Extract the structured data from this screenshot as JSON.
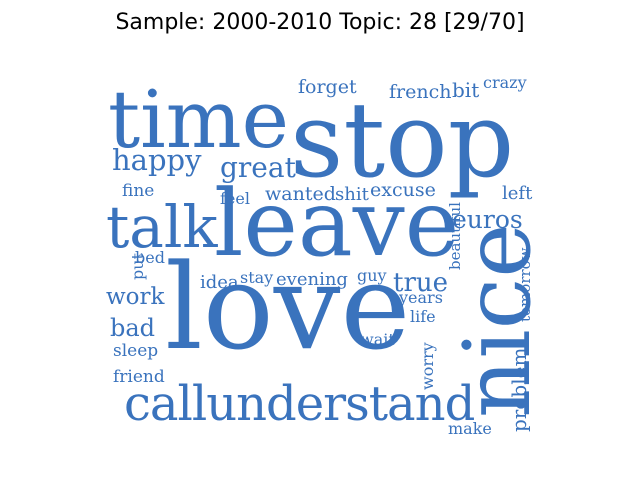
{
  "title": "Sample: 2000-2010 Topic: 28 [29/70]",
  "colors": {
    "word": "#3a73bd",
    "background": "#ffffff"
  },
  "words": [
    {
      "text": "time",
      "size": "xl"
    },
    {
      "text": "stop",
      "size": "xxl"
    },
    {
      "text": "love",
      "size": "xxl"
    },
    {
      "text": "leave",
      "size": "xl"
    },
    {
      "text": "nice",
      "size": "xl",
      "vertical": true
    },
    {
      "text": "callunderstand",
      "size": "l"
    },
    {
      "text": "talk",
      "size": "l"
    },
    {
      "text": "happy",
      "size": "m"
    },
    {
      "text": "great",
      "size": "m"
    },
    {
      "text": "euros",
      "size": "m"
    },
    {
      "text": "true",
      "size": "m"
    },
    {
      "text": "work",
      "size": "m"
    },
    {
      "text": "bad",
      "size": "m"
    },
    {
      "text": "forget",
      "size": "s"
    },
    {
      "text": "french",
      "size": "s"
    },
    {
      "text": "bit",
      "size": "s"
    },
    {
      "text": "crazy",
      "size": "s"
    },
    {
      "text": "wanted",
      "size": "s"
    },
    {
      "text": "shit",
      "size": "s"
    },
    {
      "text": "excuse",
      "size": "s"
    },
    {
      "text": "left",
      "size": "s"
    },
    {
      "text": "fine",
      "size": "s"
    },
    {
      "text": "feel",
      "size": "s"
    },
    {
      "text": "bed",
      "size": "s"
    },
    {
      "text": "put",
      "size": "s",
      "vertical": true
    },
    {
      "text": "idea",
      "size": "s"
    },
    {
      "text": "stay",
      "size": "s"
    },
    {
      "text": "evening",
      "size": "s"
    },
    {
      "text": "guy",
      "size": "s"
    },
    {
      "text": "years",
      "size": "s"
    },
    {
      "text": "life",
      "size": "s"
    },
    {
      "text": "beautiful",
      "size": "s",
      "vertical": true
    },
    {
      "text": "tomorrow",
      "size": "s",
      "vertical": true
    },
    {
      "text": "problem",
      "size": "s",
      "vertical": true
    },
    {
      "text": "worry",
      "size": "s",
      "vertical": true
    },
    {
      "text": "wait",
      "size": "s"
    },
    {
      "text": "sleep",
      "size": "s"
    },
    {
      "text": "friend",
      "size": "s"
    },
    {
      "text": "make",
      "size": "s"
    }
  ]
}
